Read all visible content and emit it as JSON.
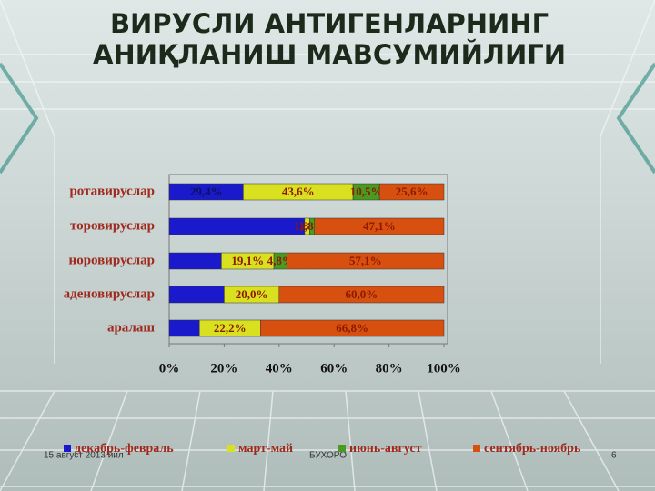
{
  "slide": {
    "title_lines": [
      "ВИРУСЛИ АНТИГЕНЛАРНИНГ",
      "АНИҚЛАНИШ МАВСУМИЙЛИГИ"
    ],
    "footer_date": "15 август 2013 йил",
    "footer_place": "БУХОРО",
    "page_number": "6"
  },
  "chart_data": {
    "type": "bar_stacked_100",
    "categories": [
      "ротавируслар",
      "торовируслар",
      "норовируслар",
      "аденовируслар",
      "аралаш"
    ],
    "series": [
      {
        "name": "декабрь-февраль",
        "color": "#1a1acc",
        "values": [
          29.4,
          49.3,
          19.0,
          20.0,
          11.0
        ],
        "value_labels": [
          "29,4%",
          null,
          null,
          null,
          null
        ]
      },
      {
        "name": "март-май",
        "color": "#d8e020",
        "values": [
          43.6,
          1.8,
          19.1,
          20.0,
          22.2
        ],
        "value_labels": [
          "43,6%",
          "1,8%",
          "19,1%",
          "20,0%",
          "22,2%"
        ]
      },
      {
        "name": "июнь-август",
        "color": "#4a9a20",
        "values": [
          10.5,
          1.8,
          4.8,
          0,
          0
        ],
        "value_labels": [
          "10,5%",
          "1,8%",
          "4,8%",
          null,
          null
        ]
      },
      {
        "name": "сентябрь-ноябрь",
        "color": "#d85010",
        "values": [
          25.6,
          47.1,
          57.1,
          60.0,
          66.8
        ],
        "value_labels": [
          "25,6%",
          "47,1%",
          "57,1%",
          "60,0%",
          "66,8%"
        ]
      }
    ],
    "xlim": [
      0,
      100
    ],
    "xticks": [
      {
        "value": 0,
        "label": "0%"
      },
      {
        "value": 20,
        "label": "20%"
      },
      {
        "value": 40,
        "label": "40%"
      },
      {
        "value": 60,
        "label": "60%"
      },
      {
        "value": 80,
        "label": "80%"
      },
      {
        "value": 100,
        "label": "100%"
      }
    ],
    "legend": "bottom"
  }
}
